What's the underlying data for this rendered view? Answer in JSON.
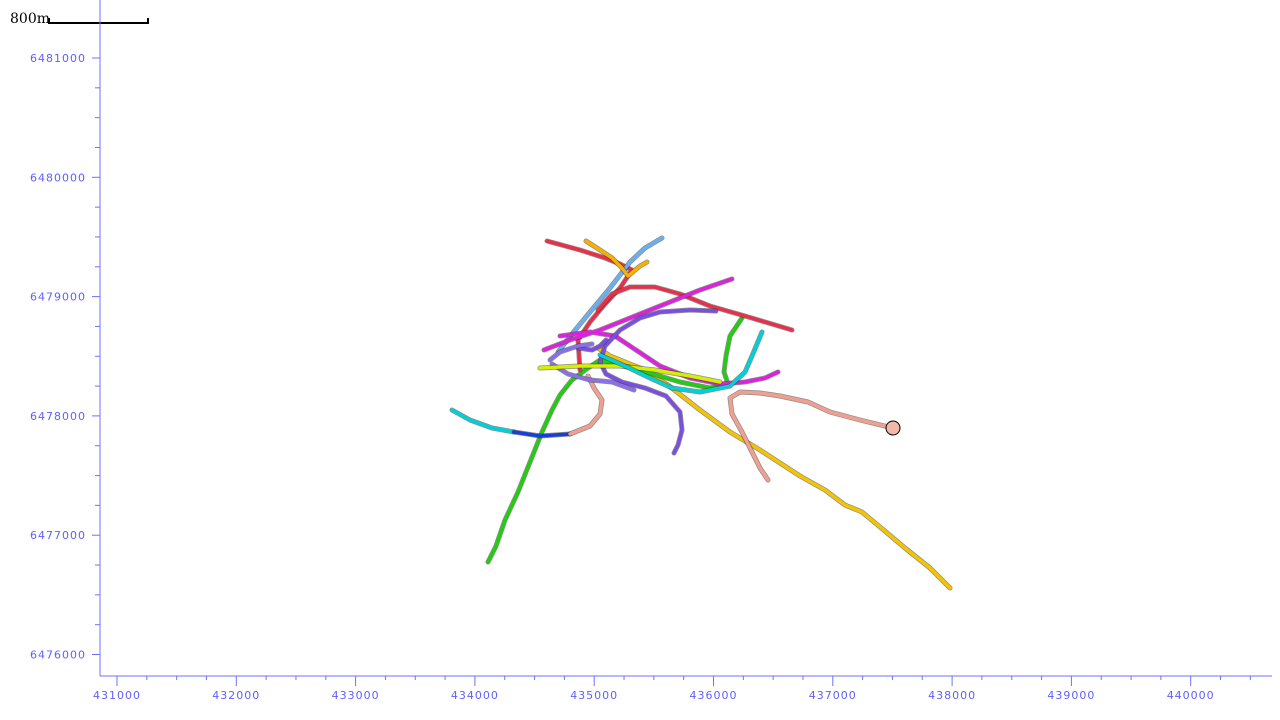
{
  "scale_bar": {
    "label": "800m"
  },
  "axes": {
    "color": "#7070ff",
    "label_color": "#6060ff",
    "x_ticks": [
      "431000",
      "432000",
      "433000",
      "434000",
      "435000",
      "436000",
      "437000",
      "438000",
      "439000",
      "440000"
    ],
    "y_ticks": [
      "6481000",
      "6480000",
      "6479000",
      "6478000",
      "6477000",
      "6476000"
    ]
  },
  "tracks": [
    {
      "name": "track-yellow-main",
      "color": "#f5c400"
    },
    {
      "name": "track-green",
      "color": "#22cc11"
    },
    {
      "name": "track-cyan",
      "color": "#00d0d8"
    },
    {
      "name": "track-blue",
      "color": "#1a3fd8"
    },
    {
      "name": "track-salmon",
      "color": "#f0a090"
    },
    {
      "name": "track-red-upper",
      "color": "#e8304a"
    },
    {
      "name": "track-red-long",
      "color": "#e8304a"
    },
    {
      "name": "track-light-blue",
      "color": "#6ab0f0"
    },
    {
      "name": "track-magenta",
      "color": "#dd22dd"
    },
    {
      "name": "track-purple-upper",
      "color": "#7a4ee0"
    },
    {
      "name": "track-purple-lower",
      "color": "#7a4ee0"
    },
    {
      "name": "track-lavender",
      "color": "#8a70e8"
    },
    {
      "name": "track-lime",
      "color": "#d4f000"
    },
    {
      "name": "track-cyan-east",
      "color": "#00d0d8"
    },
    {
      "name": "track-orange-top",
      "color": "#f5b000"
    }
  ],
  "marker": {
    "color": "#f4b8a8"
  }
}
